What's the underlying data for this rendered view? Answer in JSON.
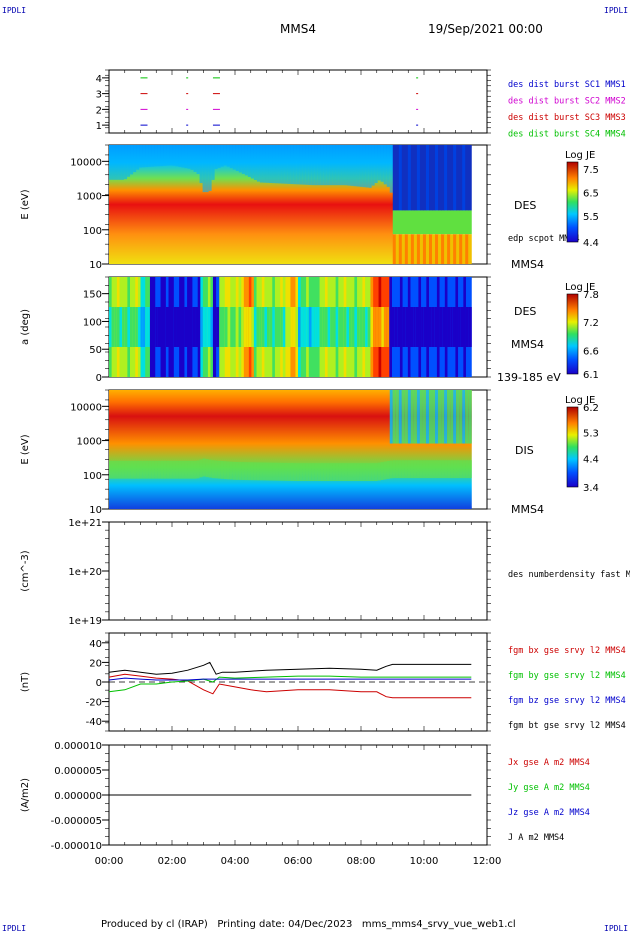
{
  "corner_label": "IPDLI",
  "header": {
    "spacecraft": "MMS4",
    "date": "19/Sep/2021 00:00"
  },
  "footer": {
    "text": "Produced by cl (IRAP)   Printing date: 04/Dec/2023   mms_mms4_srvy_vue_web1.cl"
  },
  "colors": {
    "black": "#000000",
    "red": "#cc0000",
    "green": "#00c000",
    "blue": "#0000cc",
    "magenta": "#d000d0"
  },
  "chart_data": [
    {
      "id": "availability",
      "type": "scatter",
      "yticks": [
        "1",
        "2",
        "3",
        "4"
      ],
      "ylim": [
        0.5,
        4.5
      ],
      "legend": [
        {
          "label": "des dist burst SC1 MMS1",
          "color": "#0000cc"
        },
        {
          "label": "des dist burst SC2 MMS2",
          "color": "#d000d0"
        },
        {
          "label": "des dist burst SC3 MMS3",
          "color": "#cc0000"
        },
        {
          "label": "des dist burst SC4 MMS4",
          "color": "#00c000"
        }
      ],
      "series": [
        {
          "name": "des dist burst SC1 MMS1",
          "y": 1,
          "x": [
            1.0,
            2.45,
            3.3,
            9.75
          ]
        },
        {
          "name": "des dist burst SC2 MMS2",
          "y": 2,
          "x": [
            1.0,
            2.45,
            3.3,
            9.75
          ]
        },
        {
          "name": "des dist burst SC3 MMS3",
          "y": 3,
          "x": [
            1.0,
            2.45,
            3.3,
            9.75
          ]
        },
        {
          "name": "des dist burst SC4 MMS4",
          "y": 4,
          "x": [
            1.0,
            2.45,
            3.3,
            9.75
          ]
        }
      ]
    },
    {
      "id": "des_energy",
      "type": "heatmap",
      "ylabel": "E (eV)",
      "yscale": "log",
      "ylim": [
        10,
        30000
      ],
      "yticks": [
        "10",
        "100",
        "1000",
        "10000"
      ],
      "side_labels": [
        "DES",
        "edp scpot MMS4",
        "MMS4"
      ],
      "colorbar": {
        "title": "Log JE",
        "ticks": [
          "7.5",
          "6.5",
          "5.5",
          "4.4"
        ],
        "range": [
          4.4,
          7.8
        ]
      },
      "upper_level": [
        {
          "x": 0.0,
          "v": 0.35
        },
        {
          "x": 0.5,
          "v": 0.35
        },
        {
          "x": 1.0,
          "v": 0.58
        },
        {
          "x": 2.0,
          "v": 0.62
        },
        {
          "x": 2.6,
          "v": 0.55
        },
        {
          "x": 2.85,
          "v": 0.45
        },
        {
          "x": 3.0,
          "v": 0.12
        },
        {
          "x": 3.2,
          "v": 0.12
        },
        {
          "x": 3.4,
          "v": 0.55
        },
        {
          "x": 3.7,
          "v": 0.62
        },
        {
          "x": 4.3,
          "v": 0.45
        },
        {
          "x": 4.8,
          "v": 0.3
        },
        {
          "x": 5.5,
          "v": 0.28
        },
        {
          "x": 6.5,
          "v": 0.25
        },
        {
          "x": 7.5,
          "v": 0.25
        },
        {
          "x": 8.3,
          "v": 0.2
        },
        {
          "x": 8.6,
          "v": 0.35
        },
        {
          "x": 8.9,
          "v": 0.2
        },
        {
          "x": 9.0,
          "v": 0.05
        },
        {
          "x": 11.5,
          "v": 0.05
        }
      ]
    },
    {
      "id": "des_pitch",
      "type": "heatmap",
      "ylabel": "a (deg)",
      "ylim": [
        0,
        180
      ],
      "yticks": [
        "0",
        "50",
        "100",
        "150"
      ],
      "side_labels": [
        "DES",
        "MMS4",
        "139-185 eV"
      ],
      "colorbar": {
        "title": "Log JE",
        "ticks": [
          "7.8",
          "7.2",
          "6.6",
          "6.1"
        ],
        "range": [
          6.1,
          7.8
        ]
      },
      "columns": [
        {
          "x0": 0.0,
          "x1": 1.0,
          "level": 0.55
        },
        {
          "x0": 1.0,
          "x1": 1.3,
          "level": 0.4
        },
        {
          "x0": 1.3,
          "x1": 2.9,
          "level": 0.08
        },
        {
          "x0": 2.9,
          "x1": 3.3,
          "level": 0.45
        },
        {
          "x0": 3.3,
          "x1": 3.5,
          "level": 0.15
        },
        {
          "x0": 3.5,
          "x1": 4.2,
          "level": 0.6
        },
        {
          "x0": 4.2,
          "x1": 4.6,
          "level": 0.75
        },
        {
          "x0": 4.6,
          "x1": 5.6,
          "level": 0.55
        },
        {
          "x0": 5.6,
          "x1": 6.0,
          "level": 0.7
        },
        {
          "x0": 6.0,
          "x1": 6.6,
          "level": 0.45
        },
        {
          "x0": 6.6,
          "x1": 8.3,
          "level": 0.55
        },
        {
          "x0": 8.3,
          "x1": 8.9,
          "level": 0.85
        },
        {
          "x0": 8.9,
          "x1": 11.5,
          "level": 0.12
        }
      ]
    },
    {
      "id": "dis_energy",
      "type": "heatmap",
      "ylabel": "E (eV)",
      "yscale": "log",
      "ylim": [
        10,
        30000
      ],
      "yticks": [
        "10",
        "100",
        "1000",
        "10000"
      ],
      "side_labels": [
        "DIS",
        "MMS4"
      ],
      "colorbar": {
        "title": "Log JE",
        "ticks": [
          "6.2",
          "5.3",
          "4.4",
          "3.4"
        ],
        "range": [
          3.4,
          6.2
        ]
      },
      "lower_level": [
        {
          "x": 0.0,
          "v": 0.55
        },
        {
          "x": 2.8,
          "v": 0.55
        },
        {
          "x": 3.0,
          "v": 0.75
        },
        {
          "x": 3.3,
          "v": 0.6
        },
        {
          "x": 4.0,
          "v": 0.45
        },
        {
          "x": 6.0,
          "v": 0.35
        },
        {
          "x": 8.5,
          "v": 0.35
        },
        {
          "x": 9.0,
          "v": 0.6
        },
        {
          "x": 11.5,
          "v": 0.6
        }
      ]
    },
    {
      "id": "density",
      "type": "line",
      "ylabel": "(cm^-3)",
      "yscale": "log",
      "ylim": [
        1e+19,
        1e+21
      ],
      "yticks": [
        "1e+19",
        "1e+20",
        "1e+21"
      ],
      "legend": [
        {
          "label": "des numberdensity fast M",
          "color": "#000000"
        }
      ],
      "series": []
    },
    {
      "id": "fgm",
      "type": "line",
      "ylabel": "(nT)",
      "ylim": [
        -50,
        50
      ],
      "yticks": [
        "40",
        "20",
        "0",
        "-20",
        "-40"
      ],
      "legend": [
        {
          "label": "fgm bx gse srvy l2 MMS4",
          "color": "#cc0000"
        },
        {
          "label": "fgm by gse srvy l2 MMS4",
          "color": "#00c000"
        },
        {
          "label": "fgm bz gse srvy l2 MMS4",
          "color": "#0000cc"
        },
        {
          "label": "fgm bt gse srvy l2 MMS4",
          "color": "#000000"
        }
      ],
      "series": [
        {
          "name": "fgm bx gse srvy l2 MMS4",
          "color": "#cc0000",
          "x": [
            0,
            0.5,
            1,
            1.5,
            2,
            2.5,
            3,
            3.3,
            3.5,
            4,
            4.5,
            5,
            6,
            7,
            8,
            8.5,
            8.8,
            9,
            10,
            11,
            11.5
          ],
          "y": [
            5,
            8,
            6,
            4,
            3,
            1,
            -8,
            -12,
            -2,
            -5,
            -8,
            -10,
            -8,
            -8,
            -10,
            -10,
            -15,
            -16,
            -16,
            -16,
            -16
          ]
        },
        {
          "name": "fgm by gse srvy l2 MMS4",
          "color": "#00c000",
          "x": [
            0,
            0.5,
            1,
            1.5,
            2,
            2.5,
            3,
            3.3,
            3.5,
            4,
            5,
            6,
            7,
            8,
            9,
            10,
            11,
            11.5
          ],
          "y": [
            -10,
            -8,
            -2,
            -2,
            0,
            1,
            3,
            0,
            5,
            4,
            5,
            6,
            6,
            5,
            5,
            5,
            5,
            5
          ]
        },
        {
          "name": "fgm bz gse srvy l2 MMS4",
          "color": "#0000cc",
          "x": [
            0,
            0.5,
            1,
            1.5,
            2,
            2.5,
            3,
            3.5,
            4,
            5,
            6,
            7,
            8,
            9,
            10,
            11,
            11.5
          ],
          "y": [
            2,
            4,
            3,
            2,
            2,
            2,
            3,
            3,
            3,
            3,
            3,
            3,
            3,
            3,
            3,
            3,
            3
          ]
        },
        {
          "name": "fgm bt gse srvy l2 MMS4",
          "color": "#000000",
          "x": [
            0,
            0.5,
            1,
            1.5,
            2,
            2.5,
            3,
            3.2,
            3.4,
            3.6,
            4,
            4.5,
            5,
            6,
            7,
            8,
            8.5,
            8.8,
            9,
            10,
            11,
            11.5
          ],
          "y": [
            10,
            12,
            10,
            8,
            9,
            12,
            17,
            20,
            8,
            10,
            10,
            11,
            12,
            13,
            14,
            13,
            12,
            16,
            18,
            18,
            18,
            18
          ]
        }
      ]
    },
    {
      "id": "current",
      "type": "line",
      "ylabel": "(A/m2)",
      "ylim": [
        -1e-05,
        1e-05
      ],
      "yticks": [
        "0.000010",
        "0.000005",
        "0.000000",
        "-0.000005",
        "-0.000010"
      ],
      "legend": [
        {
          "label": "Jx gse A m2 MMS4",
          "color": "#cc0000"
        },
        {
          "label": "Jy gse A m2 MMS4",
          "color": "#00c000"
        },
        {
          "label": "Jz gse A m2 MMS4",
          "color": "#0000cc"
        },
        {
          "label": "J A m2 MMS4",
          "color": "#000000"
        }
      ],
      "series": [
        {
          "name": "J A m2 MMS4",
          "color": "#000000",
          "x": [
            0,
            11.5
          ],
          "y": [
            0,
            0
          ]
        }
      ]
    }
  ],
  "xaxis": {
    "range": [
      0,
      12
    ],
    "ticklabels": [
      "00:00",
      "02:00",
      "04:00",
      "06:00",
      "08:00",
      "10:00",
      "12:00"
    ]
  }
}
